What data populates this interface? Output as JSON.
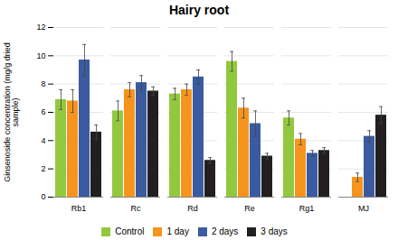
{
  "chart_data": {
    "type": "bar",
    "title": "Hairy root",
    "ylabel": "Ginsenoside concentration (mg/g dried\nsample)",
    "categories": [
      "Rb1",
      "Rc",
      "Rd",
      "Re",
      "Rg1",
      "MJ"
    ],
    "series": [
      {
        "name": "Control",
        "color": "#92C83E",
        "values": [
          6.9,
          6.1,
          7.3,
          9.6,
          5.6,
          0.0
        ],
        "errors": [
          0.7,
          0.7,
          0.4,
          0.7,
          0.5,
          0.0
        ]
      },
      {
        "name": "1 day",
        "color": "#F7941D",
        "values": [
          6.8,
          7.6,
          7.6,
          6.3,
          4.1,
          1.4
        ],
        "errors": [
          0.8,
          0.5,
          0.4,
          0.7,
          0.4,
          0.3
        ]
      },
      {
        "name": "2 days",
        "color": "#3A5BA0",
        "values": [
          9.7,
          8.1,
          8.5,
          5.2,
          3.1,
          4.3
        ],
        "errors": [
          1.1,
          0.5,
          0.5,
          0.9,
          0.2,
          0.4
        ]
      },
      {
        "name": "3 days",
        "color": "#231F20",
        "values": [
          4.6,
          7.5,
          2.6,
          2.9,
          3.3,
          5.8
        ],
        "errors": [
          0.5,
          0.3,
          0.2,
          0.2,
          0.2,
          0.6
        ]
      }
    ],
    "ylim": [
      0,
      12
    ],
    "yticks": [
      0,
      2,
      4,
      6,
      8,
      10,
      12
    ],
    "grid": true,
    "legend": "bottom"
  }
}
